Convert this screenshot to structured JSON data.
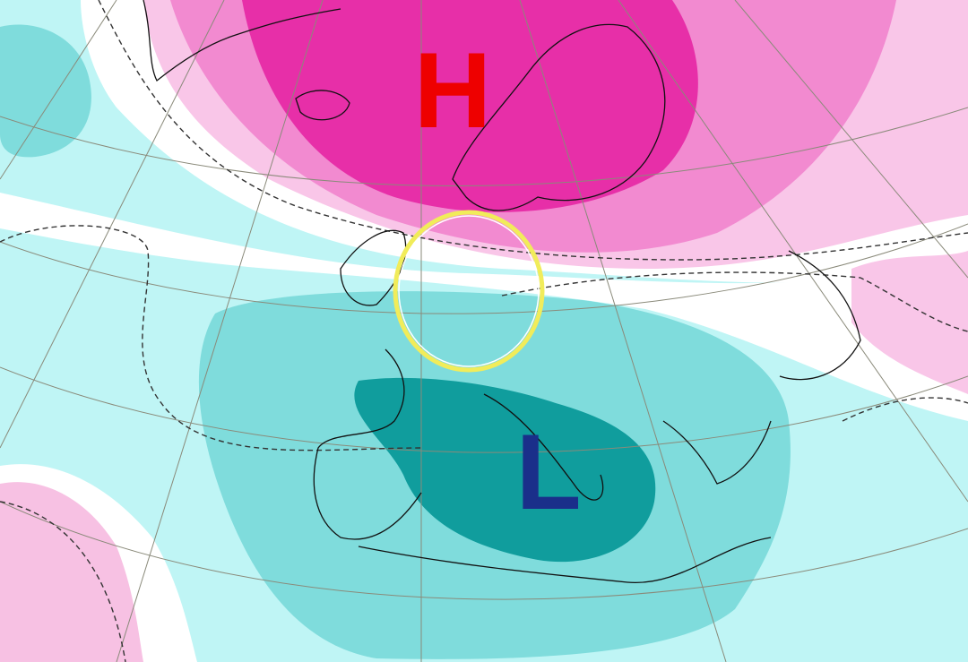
{
  "labels": {
    "high": "H",
    "low": "L"
  }
}
